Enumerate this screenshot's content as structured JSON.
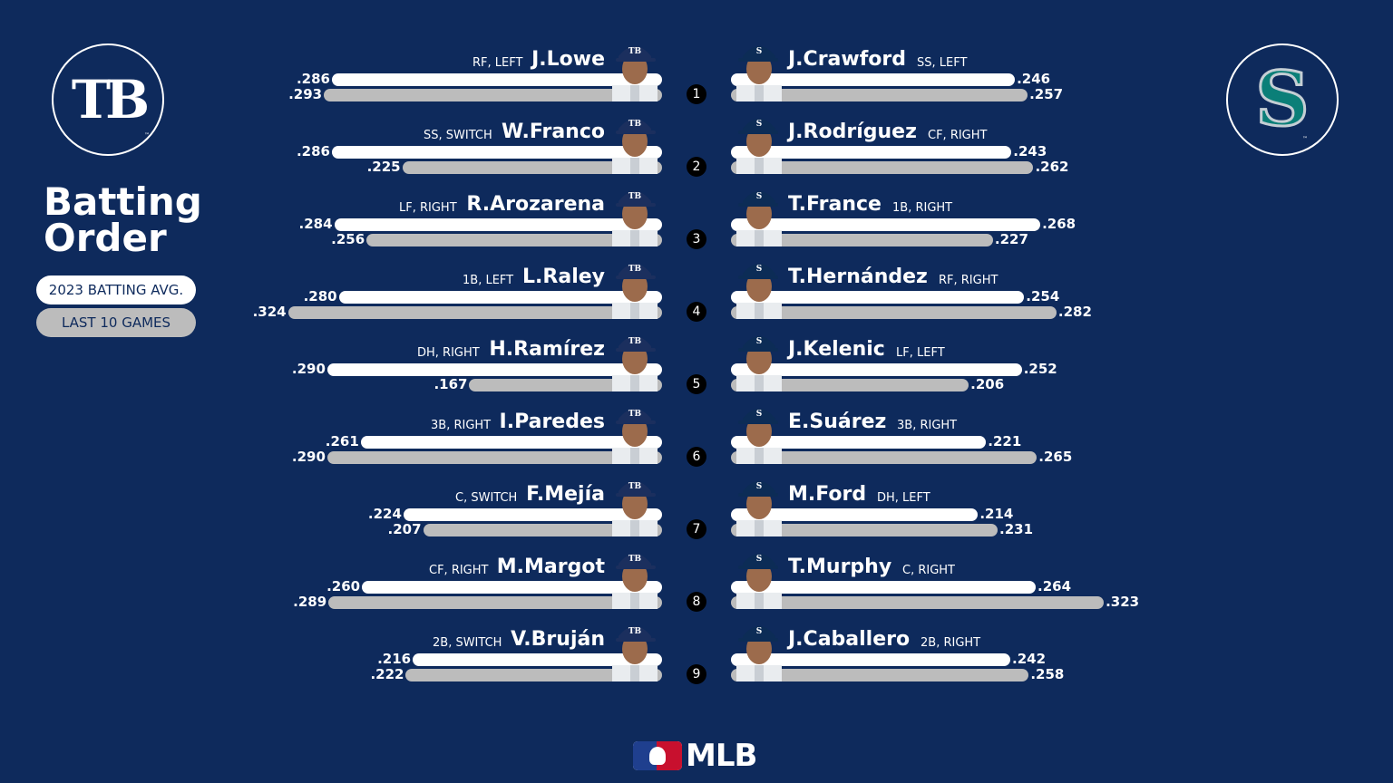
{
  "title": "Batting\nOrder",
  "legend": {
    "season": "2023 BATTING AVG.",
    "last10": "LAST 10 GAMES"
  },
  "left_team": {
    "logo_text": "TB",
    "cap_text": "TB"
  },
  "right_team": {
    "logo_text": "S",
    "cap_text": "S"
  },
  "footer": {
    "brand": "MLB"
  },
  "colors": {
    "background": "#0e2a5c",
    "bar_2023": "#ffffff",
    "bar_last10": "#bcbcbc",
    "mariners_teal": "#0b7f78"
  },
  "chart_data": {
    "type": "bar",
    "scale_max": 0.33,
    "series": [
      {
        "key": "avg_2023",
        "name": "2023 BATTING AVG."
      },
      {
        "key": "last10",
        "name": "LAST 10 GAMES"
      }
    ],
    "left": [
      {
        "order": "1",
        "name": "J.Lowe",
        "pos": "RF, LEFT",
        "avg_2023": 0.286,
        "last10": 0.293,
        "avg_2023_label": ".286",
        "last10_label": ".293"
      },
      {
        "order": "2",
        "name": "W.Franco",
        "pos": "SS, SWITCH",
        "avg_2023": 0.286,
        "last10": 0.225,
        "avg_2023_label": ".286",
        "last10_label": ".225"
      },
      {
        "order": "3",
        "name": "R.Arozarena",
        "pos": "LF, RIGHT",
        "avg_2023": 0.284,
        "last10": 0.256,
        "avg_2023_label": ".284",
        "last10_label": ".256"
      },
      {
        "order": "4",
        "name": "L.Raley",
        "pos": "1B, LEFT",
        "avg_2023": 0.28,
        "last10": 0.324,
        "avg_2023_label": ".280",
        "last10_label": ".324"
      },
      {
        "order": "5",
        "name": "H.Ramírez",
        "pos": "DH, RIGHT",
        "avg_2023": 0.29,
        "last10": 0.167,
        "avg_2023_label": ".290",
        "last10_label": ".167"
      },
      {
        "order": "6",
        "name": "I.Paredes",
        "pos": "3B, RIGHT",
        "avg_2023": 0.261,
        "last10": 0.29,
        "avg_2023_label": ".261",
        "last10_label": ".290"
      },
      {
        "order": "7",
        "name": "F.Mejía",
        "pos": "C, SWITCH",
        "avg_2023": 0.224,
        "last10": 0.207,
        "avg_2023_label": ".224",
        "last10_label": ".207"
      },
      {
        "order": "8",
        "name": "M.Margot",
        "pos": "CF, RIGHT",
        "avg_2023": 0.26,
        "last10": 0.289,
        "avg_2023_label": ".260",
        "last10_label": ".289"
      },
      {
        "order": "9",
        "name": "V.Bruján",
        "pos": "2B, SWITCH",
        "avg_2023": 0.216,
        "last10": 0.222,
        "avg_2023_label": ".216",
        "last10_label": ".222"
      }
    ],
    "right": [
      {
        "name": "J.Crawford",
        "pos": "SS, LEFT",
        "avg_2023": 0.246,
        "last10": 0.257,
        "avg_2023_label": ".246",
        "last10_label": ".257"
      },
      {
        "name": "J.Rodríguez",
        "pos": "CF, RIGHT",
        "avg_2023": 0.243,
        "last10": 0.262,
        "avg_2023_label": ".243",
        "last10_label": ".262"
      },
      {
        "name": "T.France",
        "pos": "1B, RIGHT",
        "avg_2023": 0.268,
        "last10": 0.227,
        "avg_2023_label": ".268",
        "last10_label": ".227"
      },
      {
        "name": "T.Hernández",
        "pos": "RF, RIGHT",
        "avg_2023": 0.254,
        "last10": 0.282,
        "avg_2023_label": ".254",
        "last10_label": ".282"
      },
      {
        "name": "J.Kelenic",
        "pos": "LF, LEFT",
        "avg_2023": 0.252,
        "last10": 0.206,
        "avg_2023_label": ".252",
        "last10_label": ".206"
      },
      {
        "name": "E.Suárez",
        "pos": "3B, RIGHT",
        "avg_2023": 0.221,
        "last10": 0.265,
        "avg_2023_label": ".221",
        "last10_label": ".265"
      },
      {
        "name": "M.Ford",
        "pos": "DH, LEFT",
        "avg_2023": 0.214,
        "last10": 0.231,
        "avg_2023_label": ".214",
        "last10_label": ".231"
      },
      {
        "name": "T.Murphy",
        "pos": "C, RIGHT",
        "avg_2023": 0.264,
        "last10": 0.323,
        "avg_2023_label": ".264",
        "last10_label": ".323"
      },
      {
        "name": "J.Caballero",
        "pos": "2B, RIGHT",
        "avg_2023": 0.242,
        "last10": 0.258,
        "avg_2023_label": ".242",
        "last10_label": ".258"
      }
    ]
  }
}
